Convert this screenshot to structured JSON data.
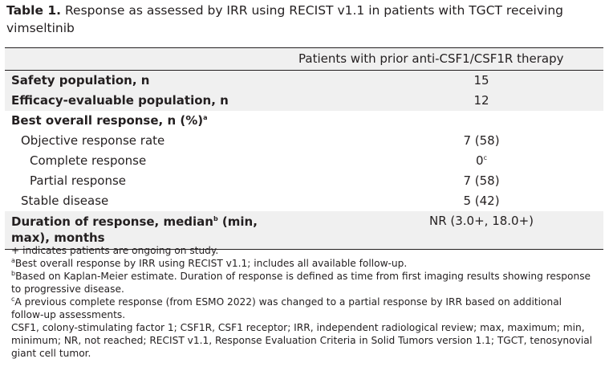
{
  "caption": {
    "label": "Table 1.",
    "text": "Response as assessed by IRR using RECIST v1.1 in patients with TGCT receiving vimseltinib"
  },
  "table": {
    "column_header": "Patients with prior anti-CSF1/CSF1R therapy",
    "rows": [
      {
        "label": "Safety population, n",
        "value": "15"
      },
      {
        "label": "Efficacy-evaluable population, n",
        "value": "12"
      },
      {
        "label": "Best overall response, n (%)",
        "sup": "a",
        "value": ""
      },
      {
        "label": "Objective response rate",
        "value": "7 (58)"
      },
      {
        "label": "Complete response",
        "value": "0",
        "value_sup": "c"
      },
      {
        "label": "Partial response",
        "value": "7 (58)"
      },
      {
        "label": "Stable disease",
        "value": "5 (42)"
      },
      {
        "label": "Duration of response, median",
        "sup": "b",
        "label_rest": " (min, max), months",
        "value": "NR (3.0+, 18.0+)"
      }
    ]
  },
  "footnotes": {
    "plus": "+ indicates patients are ongoing on study.",
    "a_mark": "a",
    "a": "Best overall response by IRR using RECIST v1.1; includes all available follow-up.",
    "b_mark": "b",
    "b": "Based on Kaplan-Meier estimate. Duration of response is defined as time from first imaging results showing response to progressive disease.",
    "c_mark": "c",
    "c": "A previous complete response (from ESMO 2022) was changed to a partial response by IRR based on additional follow-up assessments.",
    "abbrev": "CSF1, colony-stimulating factor 1; CSF1R, CSF1 receptor; IRR, independent radiological review; max, maximum; min, minimum; NR, not reached; RECIST v1.1, Response Evaluation Criteria in Solid Tumors version 1.1; TGCT, tenosynovial giant cell tumor."
  }
}
